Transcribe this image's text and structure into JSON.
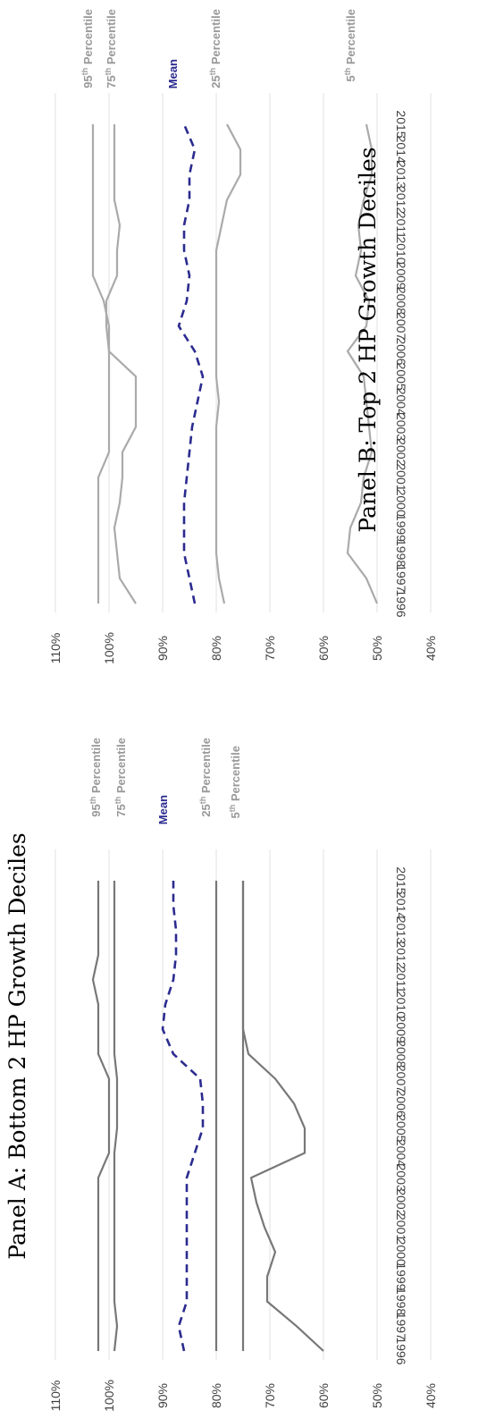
{
  "chart_data": [
    {
      "type": "line",
      "title": "Panel A: Bottom 2 HP Growth Deciles",
      "xlabel": "",
      "ylabel": "",
      "x": [
        "1996",
        "1997",
        "1998",
        "1999",
        "2000",
        "2001",
        "2002",
        "2003",
        "2004",
        "2005",
        "2006",
        "2007",
        "2008",
        "2009",
        "2010",
        "2011",
        "2012",
        "2013",
        "2014",
        "2015"
      ],
      "ylim": [
        40,
        110
      ],
      "yticks": [
        "40%",
        "50%",
        "60%",
        "70%",
        "80%",
        "90%",
        "100%",
        "110%"
      ],
      "grid": true,
      "series": [
        {
          "name": "95th Percentile",
          "color": "#777777",
          "dash": false,
          "values": [
            102,
            102,
            102,
            102,
            102,
            102,
            102,
            102,
            100,
            100,
            100,
            100,
            102,
            102,
            102,
            103,
            102,
            102,
            102,
            102
          ]
        },
        {
          "name": "75th Percentile",
          "color": "#777777",
          "dash": false,
          "values": [
            99,
            98.5,
            99,
            99,
            99,
            99,
            99,
            99,
            99,
            98.5,
            98.5,
            98.5,
            99,
            99,
            99,
            99,
            99,
            99,
            99,
            99
          ]
        },
        {
          "name": "Mean",
          "color": "#2b2b8f",
          "dash": true,
          "values": [
            86,
            87,
            85.5,
            85.5,
            85.5,
            85.5,
            85.5,
            85.5,
            84,
            82.5,
            82.5,
            83,
            88,
            90,
            89.5,
            88,
            87.5,
            87.5,
            88,
            88
          ]
        },
        {
          "name": "25th Percentile",
          "color": "#777777",
          "dash": false,
          "values": [
            80,
            80,
            80,
            80,
            80,
            80,
            80,
            80,
            80,
            80,
            80,
            80,
            80,
            80,
            80,
            80,
            80,
            80,
            80,
            80
          ]
        },
        {
          "name": "5th Percentile",
          "color": "#777777",
          "dash": false,
          "values": [
            75,
            75,
            75,
            75,
            75,
            75,
            75,
            75,
            75,
            75,
            75,
            75,
            75,
            75,
            75,
            75,
            75,
            75,
            75,
            75
          ]
        },
        {
          "name": "",
          "color": "#777777",
          "dash": false,
          "values": [
            60,
            65,
            70.5,
            70.5,
            69,
            71,
            72.5,
            73.5,
            63.5,
            63.5,
            65.5,
            69,
            74,
            75,
            75,
            75,
            75,
            75,
            75,
            75
          ]
        }
      ],
      "labels": [
        {
          "text": "95",
          "sup": "th",
          "rest": " Percentile",
          "color": "#999999"
        },
        {
          "text": "75",
          "sup": "th",
          "rest": " Percentile",
          "color": "#999999"
        },
        {
          "text": "Mean",
          "sup": "",
          "rest": "",
          "color": "#2b2b8f"
        },
        {
          "text": "25",
          "sup": "th",
          "rest": " Percentile",
          "color": "#999999"
        },
        {
          "text": "5",
          "sup": "th",
          "rest": " Percentile",
          "color": "#999999"
        }
      ]
    },
    {
      "type": "line",
      "title": "Panel B: Top 2 HP Growth Deciles",
      "xlabel": "",
      "ylabel": "",
      "x": [
        "1996",
        "1997",
        "1998",
        "1999",
        "2000",
        "2001",
        "2002",
        "2003",
        "2004",
        "2005",
        "2006",
        "2007",
        "2008",
        "2009",
        "2010",
        "2011",
        "2012",
        "2013",
        "2014",
        "2015"
      ],
      "ylim": [
        40,
        110
      ],
      "yticks": [
        "40%",
        "50%",
        "60%",
        "70%",
        "80%",
        "90%",
        "100%",
        "110%"
      ],
      "grid": true,
      "series": [
        {
          "name": "95th Percentile",
          "color": "#aaaaaa",
          "dash": false,
          "values": [
            102,
            102,
            102,
            102,
            102,
            102,
            100,
            100,
            100,
            100,
            100,
            100,
            101,
            103,
            103,
            103,
            103,
            103,
            103,
            103
          ]
        },
        {
          "name": "75th Percentile",
          "color": "#aaaaaa",
          "dash": false,
          "values": [
            95,
            98,
            98.5,
            99,
            98,
            97.5,
            97.5,
            95,
            95,
            95,
            100,
            100.5,
            100.5,
            98.5,
            98.5,
            98,
            99,
            99,
            99,
            99
          ]
        },
        {
          "name": "Mean",
          "color": "#2b2b8f",
          "dash": true,
          "values": [
            84,
            85,
            86,
            86,
            86,
            85.5,
            85,
            84.5,
            83.5,
            82.5,
            84,
            87,
            85.5,
            85,
            86,
            86,
            85,
            85,
            84,
            86
          ]
        },
        {
          "name": "25th Percentile",
          "color": "#aaaaaa",
          "dash": false,
          "values": [
            78.5,
            79.5,
            80,
            80,
            80,
            80,
            80,
            80,
            79.5,
            80,
            80,
            80,
            80,
            80,
            80,
            79,
            78,
            75.5,
            75.5,
            78
          ]
        },
        {
          "name": "5th Percentile",
          "color": "#aaaaaa",
          "dash": false,
          "values": [
            50,
            52,
            55.5,
            55,
            53,
            52.5,
            51,
            51.5,
            52,
            52.5,
            55.5,
            52,
            51.5,
            54,
            53,
            53.5,
            52.5,
            51,
            51,
            52
          ]
        }
      ],
      "labels": [
        {
          "text": "95",
          "sup": "th",
          "rest": " Percentile",
          "color": "#999999"
        },
        {
          "text": "75",
          "sup": "th",
          "rest": " Percentile",
          "color": "#999999"
        },
        {
          "text": "Mean",
          "sup": "",
          "rest": "",
          "color": "#2b2b8f"
        },
        {
          "text": "25",
          "sup": "th",
          "rest": " Percentile",
          "color": "#999999"
        },
        {
          "text": "5",
          "sup": "th",
          "rest": " Percentile",
          "color": "#999999"
        }
      ]
    }
  ]
}
